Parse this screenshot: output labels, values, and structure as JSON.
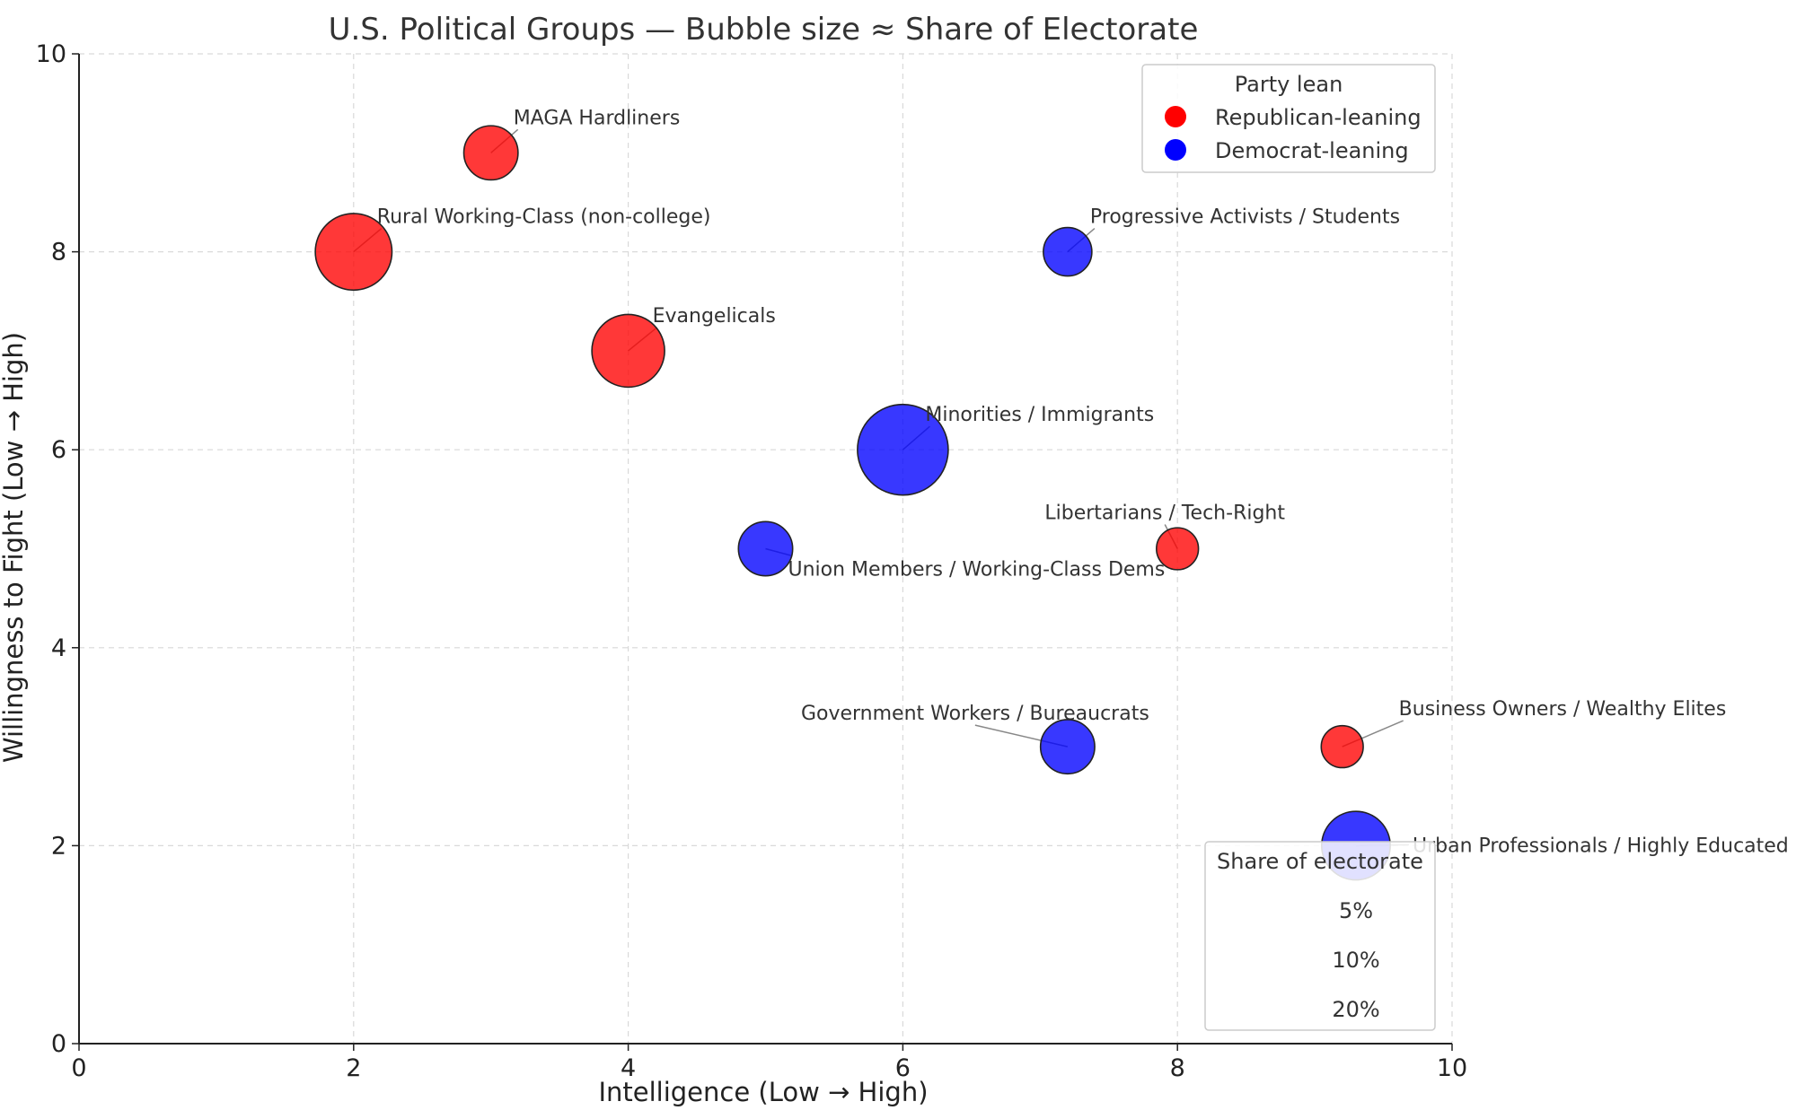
{
  "chart_data": {
    "type": "scatter",
    "title": "U.S. Political Groups — Bubble size ≈ Share of Electorate",
    "xlabel": "Intelligence (Low → High)",
    "ylabel": "Willingness to Fight (Low → High)",
    "xlim": [
      0,
      10
    ],
    "ylim": [
      0,
      10
    ],
    "xticks": [
      "0",
      "2",
      "4",
      "6",
      "8",
      "10"
    ],
    "yticks": [
      "0",
      "2",
      "4",
      "6",
      "8",
      "10"
    ],
    "grid": true,
    "colors": {
      "Republican-leaning": "#ff0000",
      "Democrat-leaning": "#0000ff"
    },
    "points": [
      {
        "label": "MAGA Hardliners",
        "x": 3,
        "y": 9,
        "share": 5,
        "party": "Republican-leaning"
      },
      {
        "label": "Rural Working-Class (non-college)",
        "x": 2,
        "y": 8,
        "share": 10,
        "party": "Republican-leaning"
      },
      {
        "label": "Progressive Activists / Students",
        "x": 7.2,
        "y": 8,
        "share": 4,
        "party": "Democrat-leaning"
      },
      {
        "label": "Evangelicals",
        "x": 4,
        "y": 7,
        "share": 9,
        "party": "Republican-leaning"
      },
      {
        "label": "Minorities / Immigrants",
        "x": 6,
        "y": 6,
        "share": 14,
        "party": "Democrat-leaning"
      },
      {
        "label": "Libertarians / Tech-Right",
        "x": 8,
        "y": 5,
        "share": 3,
        "party": "Republican-leaning"
      },
      {
        "label": "Union Members / Working-Class Dems",
        "x": 5,
        "y": 5,
        "share": 5,
        "party": "Democrat-leaning"
      },
      {
        "label": "Government Workers / Bureaucrats",
        "x": 7.2,
        "y": 3,
        "share": 5,
        "party": "Democrat-leaning"
      },
      {
        "label": "Business Owners / Wealthy Elites",
        "x": 9.2,
        "y": 3,
        "share": 3,
        "party": "Republican-leaning"
      },
      {
        "label": "Urban Professionals / Highly Educated",
        "x": 9.3,
        "y": 2,
        "share": 8,
        "party": "Democrat-leaning"
      }
    ],
    "legend_party": {
      "title": "Party lean",
      "entries": [
        "Republican-leaning",
        "Democrat-leaning"
      ],
      "position": "top-right"
    },
    "legend_size": {
      "title": "Share of electorate",
      "entries": [
        "5%",
        "10%",
        "20%"
      ],
      "position": "lower-right"
    }
  }
}
